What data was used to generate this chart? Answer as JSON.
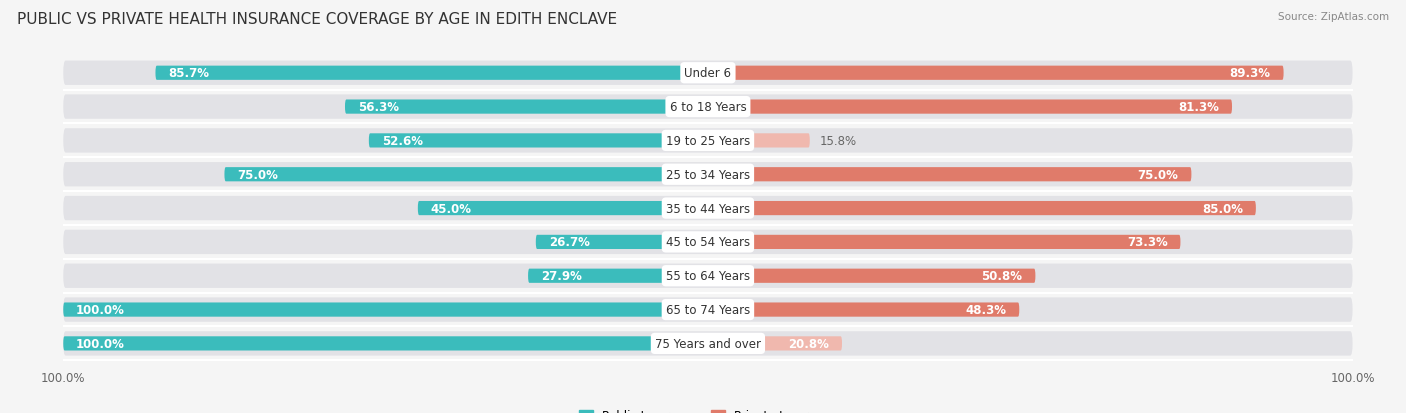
{
  "title": "PUBLIC VS PRIVATE HEALTH INSURANCE COVERAGE BY AGE IN EDITH ENCLAVE",
  "source": "Source: ZipAtlas.com",
  "categories": [
    "Under 6",
    "6 to 18 Years",
    "19 to 25 Years",
    "25 to 34 Years",
    "35 to 44 Years",
    "45 to 54 Years",
    "55 to 64 Years",
    "65 to 74 Years",
    "75 Years and over"
  ],
  "public_values": [
    85.7,
    56.3,
    52.6,
    75.0,
    45.0,
    26.7,
    27.9,
    100.0,
    100.0
  ],
  "private_values": [
    89.3,
    81.3,
    15.8,
    75.0,
    85.0,
    73.3,
    50.8,
    48.3,
    20.8
  ],
  "public_color": "#3bbcbc",
  "private_color_strong": "#e07b6a",
  "private_color_weak": "#f0b8ae",
  "private_threshold": 30,
  "max_value": 100.0,
  "row_bg_color": "#e2e2e6",
  "title_fontsize": 11,
  "label_fontsize": 8.5,
  "cat_fontsize": 8.5,
  "legend_label_public": "Public Insurance",
  "legend_label_private": "Private Insurance"
}
